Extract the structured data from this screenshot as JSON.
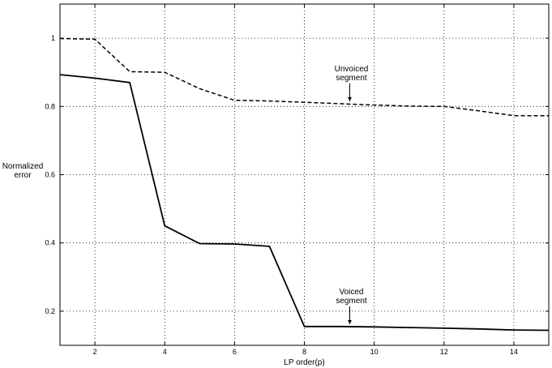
{
  "chart_data": {
    "type": "line",
    "title": "",
    "xlabel": "LP order(p)",
    "ylabel_lines": [
      "Normalized",
      "error"
    ],
    "xlim": [
      1,
      15
    ],
    "ylim": [
      0.1,
      1.1
    ],
    "xticks": [
      2,
      4,
      6,
      8,
      10,
      12,
      14
    ],
    "yticks": [
      0.2,
      0.4,
      0.6,
      0.8,
      1
    ],
    "ytick_labels": [
      "0.2",
      "0.4",
      "0.6",
      "0.8",
      "1"
    ],
    "grid": true,
    "series": [
      {
        "key": "voiced",
        "style": "solid",
        "x": [
          1,
          2,
          3,
          4,
          5,
          6,
          7,
          8,
          9,
          10,
          11,
          12,
          13,
          14,
          15
        ],
        "y": [
          0.893,
          0.883,
          0.87,
          0.45,
          0.398,
          0.397,
          0.39,
          0.155,
          0.155,
          0.154,
          0.152,
          0.15,
          0.148,
          0.145,
          0.144
        ]
      },
      {
        "key": "unvoiced",
        "style": "dashed",
        "x": [
          1,
          2,
          3,
          4,
          5,
          6,
          7,
          8,
          9,
          10,
          11,
          12,
          13,
          14,
          15
        ],
        "y": [
          0.999,
          0.997,
          0.902,
          0.9,
          0.852,
          0.818,
          0.816,
          0.812,
          0.808,
          0.804,
          0.801,
          0.8,
          0.787,
          0.773,
          0.773
        ]
      }
    ],
    "annotations": [
      {
        "key": "unvoiced",
        "lines": [
          "Unvoiced",
          "segment"
        ],
        "point_x": 9.3,
        "point_y": 0.808
      },
      {
        "key": "voiced",
        "lines": [
          "Voiced",
          "segment"
        ],
        "point_x": 9.3,
        "point_y": 0.155
      }
    ]
  }
}
